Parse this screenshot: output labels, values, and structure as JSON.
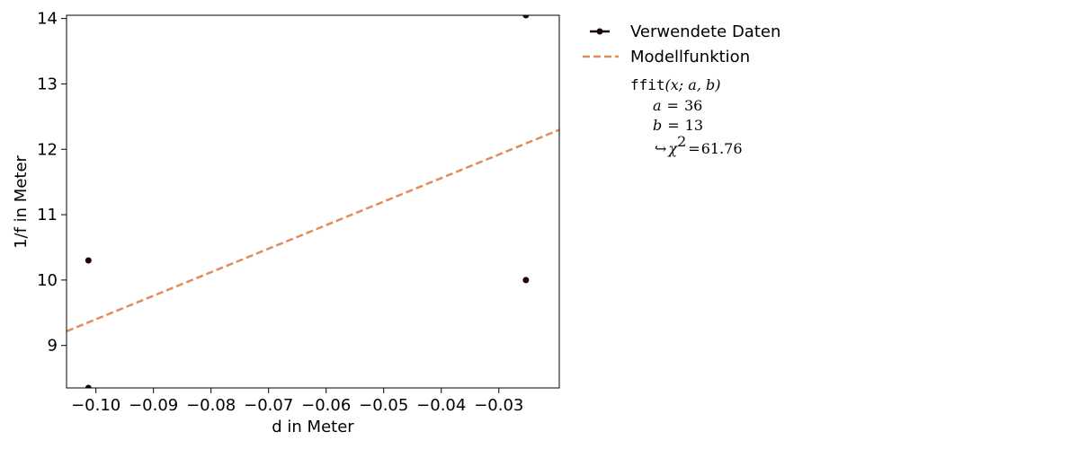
{
  "chart_data": {
    "type": "scatter",
    "xlabel": "d in Meter",
    "ylabel": "1/f in Meter",
    "xlim": [
      -0.1051,
      -0.0195
    ],
    "ylim": [
      8.35,
      14.05
    ],
    "x_ticks": [
      -0.1,
      -0.09,
      -0.08,
      -0.07,
      -0.06,
      -0.05,
      -0.04,
      -0.03
    ],
    "x_tick_labels": [
      "−0.10",
      "−0.09",
      "−0.08",
      "−0.07",
      "−0.06",
      "−0.05",
      "−0.04",
      "−0.03"
    ],
    "y_ticks": [
      9,
      10,
      11,
      12,
      13,
      14
    ],
    "y_tick_labels": [
      "9",
      "10",
      "11",
      "12",
      "13",
      "14"
    ],
    "grid": false,
    "legend_position": "outside-right",
    "series": [
      {
        "name": "Verwendete Daten",
        "kind": "points",
        "color": "#1f0505",
        "points": [
          {
            "x": -0.1013,
            "y": 10.3
          },
          {
            "x": -0.1013,
            "y": 8.35
          },
          {
            "x": -0.0253,
            "y": 10.0
          },
          {
            "x": -0.0253,
            "y": 14.05
          }
        ]
      },
      {
        "name": "Modellfunktion",
        "kind": "line",
        "style": "dashed",
        "color": "#e08d5c",
        "slope": 36,
        "intercept": 13
      }
    ],
    "fit_annotation": {
      "function_prefix": "ffit",
      "function_args": "(x; a, b)",
      "a_label": "a",
      "a_value": "36",
      "b_label": "b",
      "b_value": "13",
      "chi_arrow": "↪",
      "chi_symbol": "χ",
      "chi_sup": "2",
      "chi_value": "61.76"
    }
  }
}
